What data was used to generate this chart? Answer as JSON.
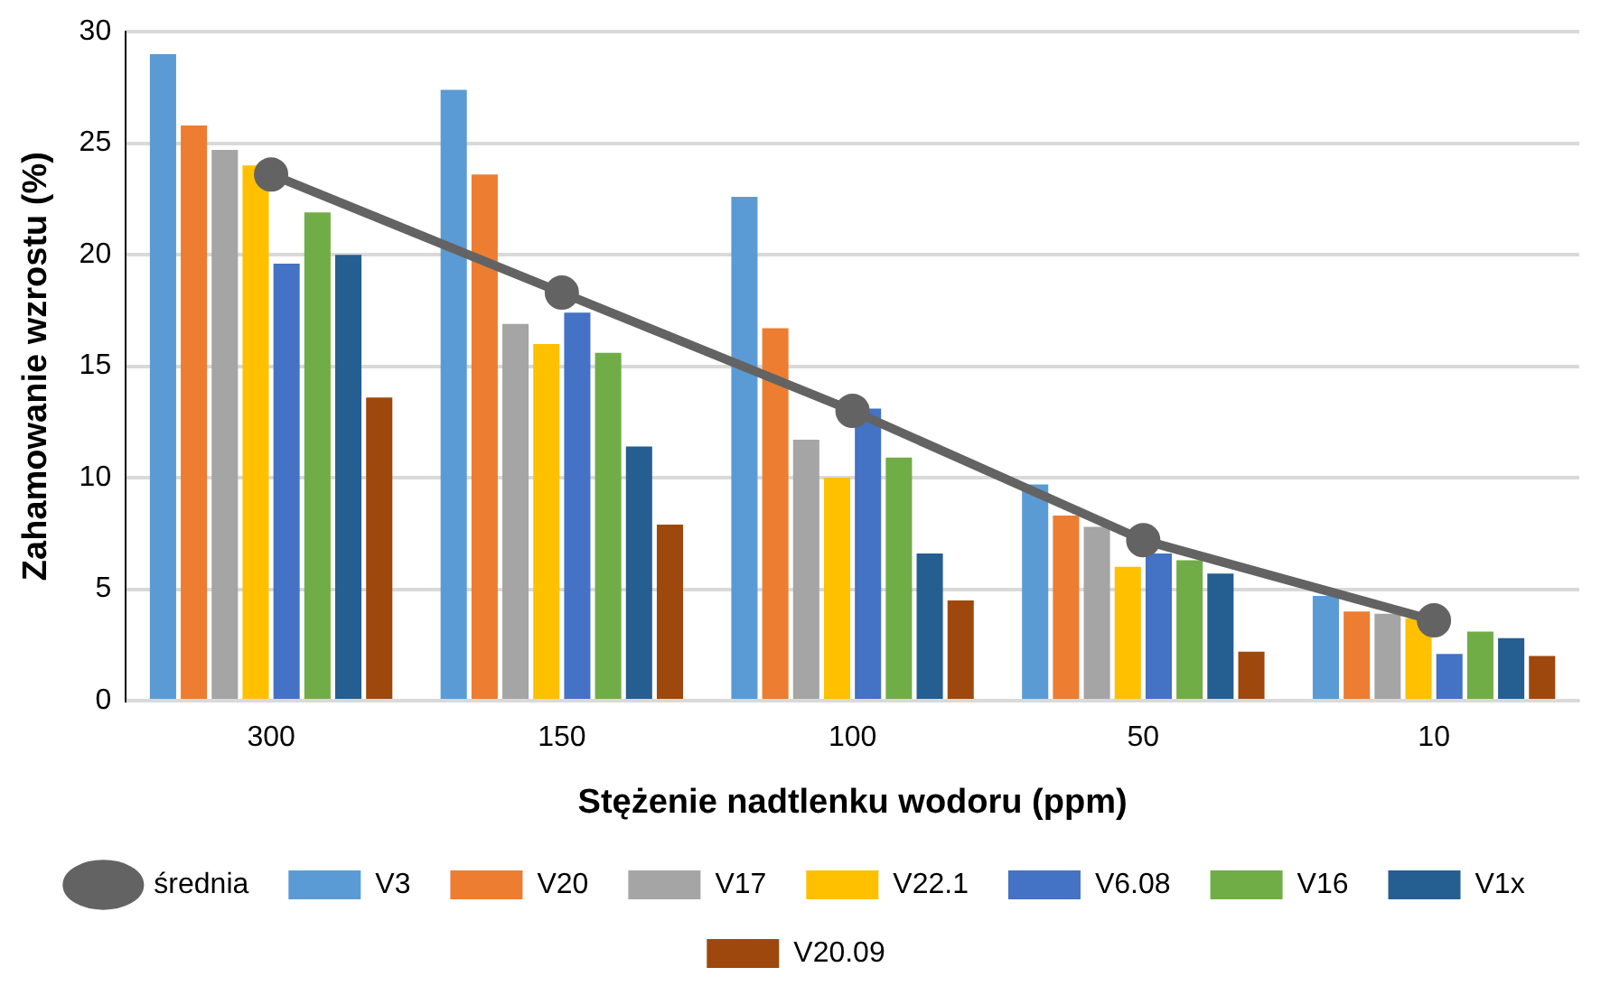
{
  "chart_data": {
    "type": "bar",
    "xlabel": "Stężenie nadtlenku wodoru (ppm)",
    "ylabel": "Zahamowanie wzrostu (%)",
    "categories": [
      "300",
      "150",
      "100",
      "50",
      "10"
    ],
    "series": [
      {
        "name": "V3",
        "color": "#5b9bd5",
        "values": [
          29.0,
          27.4,
          22.6,
          9.7,
          4.7
        ]
      },
      {
        "name": "V20",
        "color": "#ed7d31",
        "values": [
          25.8,
          23.6,
          16.7,
          8.3,
          4.0
        ]
      },
      {
        "name": "V17",
        "color": "#a5a5a5",
        "values": [
          24.7,
          16.9,
          11.7,
          7.8,
          3.9
        ]
      },
      {
        "name": "V22.1",
        "color": "#ffc000",
        "values": [
          24.0,
          16.0,
          10.0,
          6.0,
          3.7
        ]
      },
      {
        "name": "V6.08",
        "color": "#4472c4",
        "values": [
          19.6,
          17.4,
          13.1,
          6.6,
          2.1
        ]
      },
      {
        "name": "V16",
        "color": "#70ad47",
        "values": [
          21.9,
          15.6,
          10.9,
          6.3,
          3.1
        ]
      },
      {
        "name": "V1x",
        "color": "#255e91",
        "values": [
          20.0,
          11.4,
          6.6,
          5.7,
          2.8
        ]
      },
      {
        "name": "V20.09",
        "color": "#9e480e",
        "values": [
          13.6,
          7.9,
          4.5,
          2.2,
          2.0
        ]
      },
      {
        "name": "średnia",
        "type": "line",
        "color": "#636363",
        "values": [
          23.6,
          18.3,
          13.0,
          7.2,
          3.6
        ]
      }
    ],
    "ylim": [
      0,
      30
    ],
    "yticks": [
      0,
      5,
      10,
      15,
      20,
      25,
      30
    ],
    "grid": "y",
    "legend": "bottom",
    "marker": "circle"
  }
}
